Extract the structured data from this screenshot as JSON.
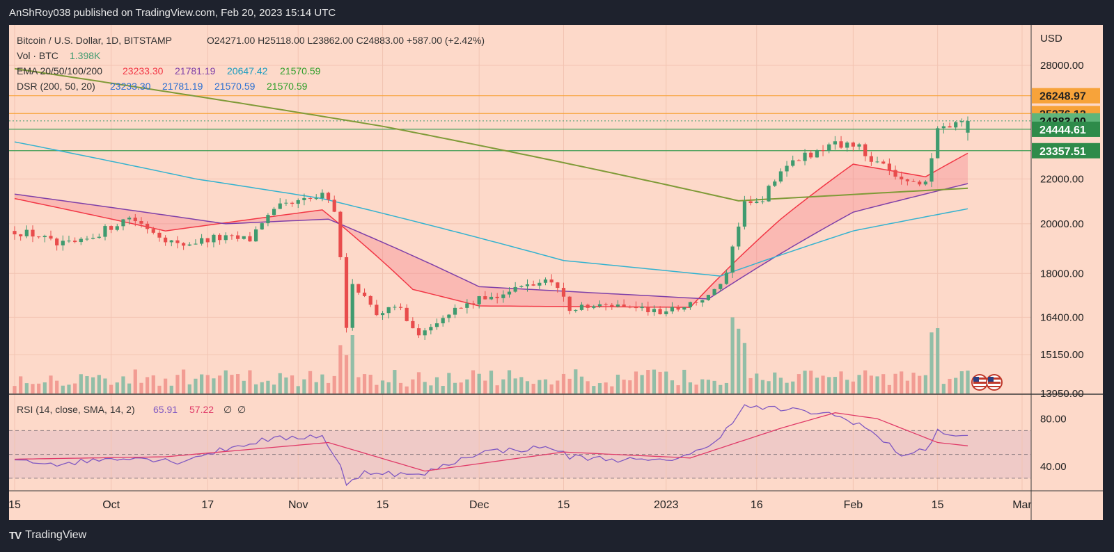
{
  "header": {
    "text": "AnShRoy038 published on TradingView.com, Feb 20, 2023 15:14 UTC"
  },
  "footer": {
    "brand": "TradingView",
    "logo": "tradingview-logo"
  },
  "legend": {
    "symbol": "Bitcoin / U.S. Dollar, 1D, BITSTAMP",
    "ohlc": "O24271.00  H25118.00  L23862.00  C24883.00  +587.00 (+2.42%)",
    "vol_label": "Vol · BTC",
    "vol_value": "1.398K",
    "ema_label": "EMA 20/50/100/200",
    "ema_values": [
      "23233.30",
      "21781.19",
      "20647.42",
      "21570.59"
    ],
    "dsr_label": "DSR (200, 50, 20)",
    "dsr_values": [
      "23233.30",
      "21781.19",
      "21570.59",
      "21570.59"
    ],
    "rsi_label": "RSI (14, close, SMA, 14, 2)",
    "rsi_values": [
      "65.91",
      "57.22",
      "∅",
      "∅"
    ]
  },
  "colors": {
    "background": "#fdd9c9",
    "up": "#3f9b6f",
    "down": "#e84c4c",
    "ema20": "#f23645",
    "ema50": "#7e3fa8",
    "ema100": "#33b2cf",
    "ema200": "#5fbf3f",
    "dsr": "#7f9a37",
    "orange_level": "#f7a33a",
    "green_level": "#3d9c53",
    "rsi": "#7e57c2",
    "rsi_ma": "#e03a68"
  },
  "chart_data": [
    {
      "type": "candlestick",
      "title": "Bitcoin / U.S. Dollar, 1D, BITSTAMP",
      "currency": "USD",
      "y_scale": "log",
      "ylim": [
        13950,
        30500
      ],
      "yticks": [
        "28000.00",
        "22000.00",
        "20000.00",
        "18000.00",
        "16400.00",
        "15150.00",
        "13950.00"
      ],
      "x_start": "2022-09-15",
      "x_end": "2023-02-20",
      "xticks": [
        {
          "date": "2022-09-15",
          "label": "15"
        },
        {
          "date": "2022-10-01",
          "label": "Oct"
        },
        {
          "date": "2022-10-17",
          "label": "17"
        },
        {
          "date": "2022-11-01",
          "label": "Nov"
        },
        {
          "date": "2022-11-15",
          "label": "15"
        },
        {
          "date": "2022-12-01",
          "label": "Dec"
        },
        {
          "date": "2022-12-15",
          "label": "15"
        },
        {
          "date": "2023-01-01",
          "label": "2023"
        },
        {
          "date": "2023-01-16",
          "label": "16"
        },
        {
          "date": "2023-02-01",
          "label": "Feb"
        },
        {
          "date": "2023-02-15",
          "label": "15"
        },
        {
          "date": "2023-03-01",
          "label": "Mar"
        }
      ],
      "price_labels": [
        {
          "value": 26248.97,
          "text": "26248.97",
          "kind": "orange"
        },
        {
          "value": 25276.12,
          "text": "25276.12",
          "kind": "orange"
        },
        {
          "value": 24883.0,
          "text": "24883.00",
          "kind": "current"
        },
        {
          "value": 24444.61,
          "text": "24444.61",
          "kind": "green"
        },
        {
          "value": 23357.51,
          "text": "23357.51",
          "kind": "green"
        }
      ],
      "close_keypoints": [
        [
          "2022-09-15",
          19700
        ],
        [
          "2022-09-19",
          19500
        ],
        [
          "2022-09-22",
          19100
        ],
        [
          "2022-09-26",
          19200
        ],
        [
          "2022-10-04",
          20300
        ],
        [
          "2022-10-12",
          19100
        ],
        [
          "2022-10-18",
          19400
        ],
        [
          "2022-10-24",
          19350
        ],
        [
          "2022-10-26",
          20100
        ],
        [
          "2022-10-29",
          20700
        ],
        [
          "2022-11-05",
          21200
        ],
        [
          "2022-11-07",
          20600
        ],
        [
          "2022-11-08",
          18500
        ],
        [
          "2022-11-09",
          15900
        ],
        [
          "2022-11-10",
          17600
        ],
        [
          "2022-11-14",
          16600
        ],
        [
          "2022-11-18",
          16700
        ],
        [
          "2022-11-21",
          15800
        ],
        [
          "2022-11-25",
          16500
        ],
        [
          "2022-12-01",
          17000
        ],
        [
          "2022-12-13",
          17800
        ],
        [
          "2022-12-16",
          16700
        ],
        [
          "2022-12-25",
          16850
        ],
        [
          "2022-12-31",
          16550
        ],
        [
          "2023-01-08",
          17100
        ],
        [
          "2023-01-11",
          17900
        ],
        [
          "2023-01-14",
          20900
        ],
        [
          "2023-01-17",
          21100
        ],
        [
          "2023-01-21",
          22700
        ],
        [
          "2023-01-29",
          23700
        ],
        [
          "2023-02-02",
          23500
        ],
        [
          "2023-02-09",
          21800
        ],
        [
          "2023-02-13",
          21800
        ],
        [
          "2023-02-15",
          24300
        ],
        [
          "2023-02-18",
          24600
        ],
        [
          "2023-02-20",
          24883
        ]
      ],
      "ema_keypoints": {
        "ema20": [
          [
            "2022-09-15",
            21100
          ],
          [
            "2022-10-10",
            19700
          ],
          [
            "2022-11-05",
            20600
          ],
          [
            "2022-11-20",
            17400
          ],
          [
            "2022-12-01",
            16800
          ],
          [
            "2023-01-05",
            16750
          ],
          [
            "2023-01-20",
            20200
          ],
          [
            "2023-02-01",
            22700
          ],
          [
            "2023-02-13",
            22100
          ],
          [
            "2023-02-20",
            23233
          ]
        ],
        "ema50": [
          [
            "2022-09-15",
            21300
          ],
          [
            "2022-10-20",
            20000
          ],
          [
            "2022-11-06",
            20200
          ],
          [
            "2022-12-01",
            17500
          ],
          [
            "2023-01-08",
            17050
          ],
          [
            "2023-02-01",
            20500
          ],
          [
            "2023-02-20",
            21781
          ]
        ],
        "ema100": [
          [
            "2022-09-15",
            23800
          ],
          [
            "2022-10-15",
            22000
          ],
          [
            "2022-11-05",
            21100
          ],
          [
            "2022-12-15",
            18500
          ],
          [
            "2023-01-10",
            17900
          ],
          [
            "2023-02-01",
            19700
          ],
          [
            "2023-02-20",
            20647
          ]
        ],
        "ema200": [
          [
            "2022-09-15",
            27800
          ],
          [
            "2022-11-15",
            24600
          ],
          [
            "2023-01-13",
            21000
          ],
          [
            "2023-02-20",
            21570
          ]
        ]
      },
      "horizontal_levels": [
        26248.97,
        25276.12,
        24444.61,
        23357.51
      ]
    },
    {
      "type": "bar",
      "title": "Vol · BTC",
      "last_value": "1.398K",
      "x_start": "2022-09-15",
      "x_end": "2023-02-20"
    },
    {
      "type": "line",
      "title": "RSI (14, close, SMA, 14, 2)",
      "ylim": [
        20,
        100
      ],
      "yticks": [
        "80.00",
        "40.00"
      ],
      "band": [
        30,
        70
      ],
      "midline": 50,
      "rsi_keypoints": [
        [
          "2022-09-15",
          46
        ],
        [
          "2022-09-22",
          42
        ],
        [
          "2022-10-04",
          48
        ],
        [
          "2022-10-12",
          44
        ],
        [
          "2022-10-18",
          52
        ],
        [
          "2022-10-26",
          62
        ],
        [
          "2022-11-05",
          66
        ],
        [
          "2022-11-08",
          40
        ],
        [
          "2022-11-09",
          23
        ],
        [
          "2022-11-12",
          36
        ],
        [
          "2022-11-21",
          32
        ],
        [
          "2022-12-01",
          52
        ],
        [
          "2022-12-13",
          56
        ],
        [
          "2022-12-16",
          48
        ],
        [
          "2022-12-31",
          44
        ],
        [
          "2023-01-08",
          55
        ],
        [
          "2023-01-14",
          90
        ],
        [
          "2023-01-20",
          88
        ],
        [
          "2023-01-28",
          84
        ],
        [
          "2023-02-02",
          76
        ],
        [
          "2023-02-09",
          50
        ],
        [
          "2023-02-13",
          53
        ],
        [
          "2023-02-15",
          71
        ],
        [
          "2023-02-18",
          64
        ],
        [
          "2023-02-20",
          65.91
        ]
      ],
      "rsi_ma_keypoints": [
        [
          "2022-09-15",
          46
        ],
        [
          "2022-10-10",
          48
        ],
        [
          "2022-11-06",
          60
        ],
        [
          "2022-11-22",
          36
        ],
        [
          "2022-12-15",
          52
        ],
        [
          "2023-01-05",
          47
        ],
        [
          "2023-01-20",
          72
        ],
        [
          "2023-01-29",
          85
        ],
        [
          "2023-02-05",
          80
        ],
        [
          "2023-02-15",
          60
        ],
        [
          "2023-02-20",
          57.22
        ]
      ]
    }
  ]
}
